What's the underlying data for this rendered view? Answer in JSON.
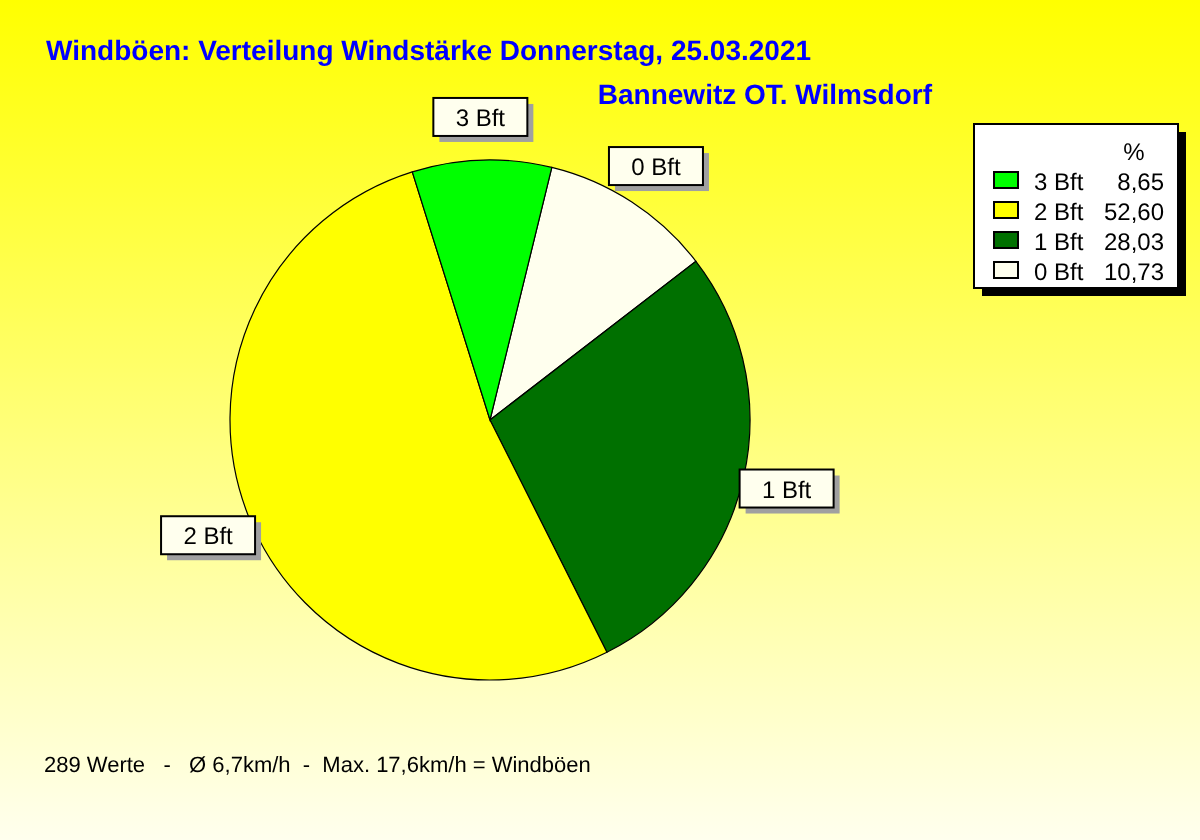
{
  "chart_data": {
    "type": "pie",
    "title": "Windböen: Verteilung Windstärke  Donnerstag, 25.03.2021",
    "subtitle": "Bannewitz OT. Wilmsdorf",
    "categories": [
      "0 Bft",
      "1 Bft",
      "2 Bft",
      "3 Bft"
    ],
    "values": [
      10.73,
      28.03,
      52.6,
      8.65
    ],
    "colors": [
      "#ffffee",
      "#007000",
      "#ffff00",
      "#00ff00"
    ],
    "value_labels": [
      "10,73",
      "28,03",
      "52,60",
      "8,65"
    ],
    "legend_title": "%",
    "legend": "top right",
    "annotations": [
      "289 Werte   -   Ø 6,7km/h  -  Max. 17,6km/h = Windböen"
    ]
  }
}
